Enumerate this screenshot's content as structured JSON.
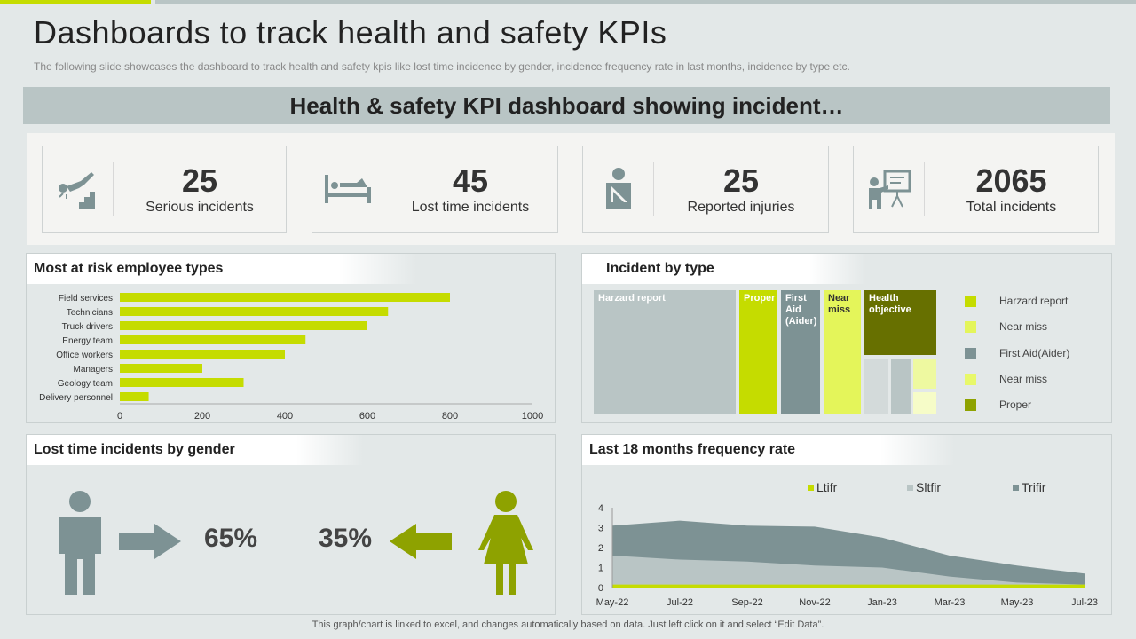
{
  "header": {
    "title": "Dashboards to track health and safety KPIs",
    "subtitle": "The following  slide showcases the dashboard  to track health  and  safety  kpis like lost time incidence  by gender,  incidence frequency  rate in last  months, incidence by type etc.",
    "banner": "Health & safety KPI dashboard showing incident…"
  },
  "kpis": [
    {
      "value": "25",
      "label": "Serious incidents",
      "icon": "fall-on-stairs-icon"
    },
    {
      "value": "45",
      "label": "Lost time incidents",
      "icon": "person-in-bed-icon"
    },
    {
      "value": "25",
      "label": "Reported injuries",
      "icon": "arm-sling-icon"
    },
    {
      "value": "2065",
      "label": "Total incidents",
      "icon": "presentation-board-icon"
    }
  ],
  "panels": {
    "risk": "Most  at risk employee types",
    "type": "Incident by type",
    "gender": "Lost time incidents by gender",
    "freq": "Last 18 months frequency rate"
  },
  "gender": {
    "male": "65%",
    "female": "35%",
    "male_color": "#7d9294",
    "female_color": "#8ea200"
  },
  "treemap": {
    "labels": [
      "Harzard report",
      "Proper",
      "First Aid (Aider)",
      "Near miss",
      "Health objective"
    ],
    "legend": [
      {
        "label": "Harzard report",
        "color": "#c5dc00"
      },
      {
        "label": "Near miss",
        "color": "#e4f55a"
      },
      {
        "label": "First Aid(Aider)",
        "color": "#7d9294"
      },
      {
        "label": "Near miss",
        "color": "#e8f86a"
      },
      {
        "label": "Proper",
        "color": "#8ea200"
      }
    ]
  },
  "chart_data": [
    {
      "type": "bar",
      "orientation": "horizontal",
      "title": "Most  at risk employee types",
      "categories": [
        "Field services",
        "Technicians",
        "Truck drivers",
        "Energy team",
        "Office workers",
        "Managers",
        "Geology team",
        "Delivery personnel"
      ],
      "values": [
        800,
        650,
        600,
        450,
        400,
        200,
        300,
        70
      ],
      "xlim": [
        0,
        1000
      ],
      "xticks": [
        "0",
        "200",
        "400",
        "600",
        "800",
        "1000"
      ],
      "color": "#c5dc00"
    },
    {
      "type": "area",
      "title": "Last 18 months frequency rate",
      "x": [
        "May-22",
        "Jul-22",
        "Sep-22",
        "Nov-22",
        "Jan-23",
        "Mar-23",
        "May-23",
        "Jul-23"
      ],
      "ylim": [
        0,
        4
      ],
      "yticks": [
        "0",
        "1",
        "2",
        "3",
        "4"
      ],
      "legend": "top",
      "series": [
        {
          "name": "Trifir",
          "values": [
            3.1,
            3.35,
            3.1,
            3.05,
            2.5,
            1.6,
            1.1,
            0.7
          ],
          "color": "#7d9294"
        },
        {
          "name": "Sltfir",
          "values": [
            1.6,
            1.4,
            1.3,
            1.1,
            1.0,
            0.55,
            0.25,
            0.15
          ],
          "color": "#b9c5c5"
        },
        {
          "name": "Ltifr",
          "values": [
            0.15,
            0.15,
            0.15,
            0.15,
            0.15,
            0.15,
            0.15,
            0.15
          ],
          "color": "#c5dc00"
        }
      ]
    }
  ],
  "footer": "This graph/chart is linked to excel,  and changes automatically based on data. Just left click on it and select “Edit Data”."
}
